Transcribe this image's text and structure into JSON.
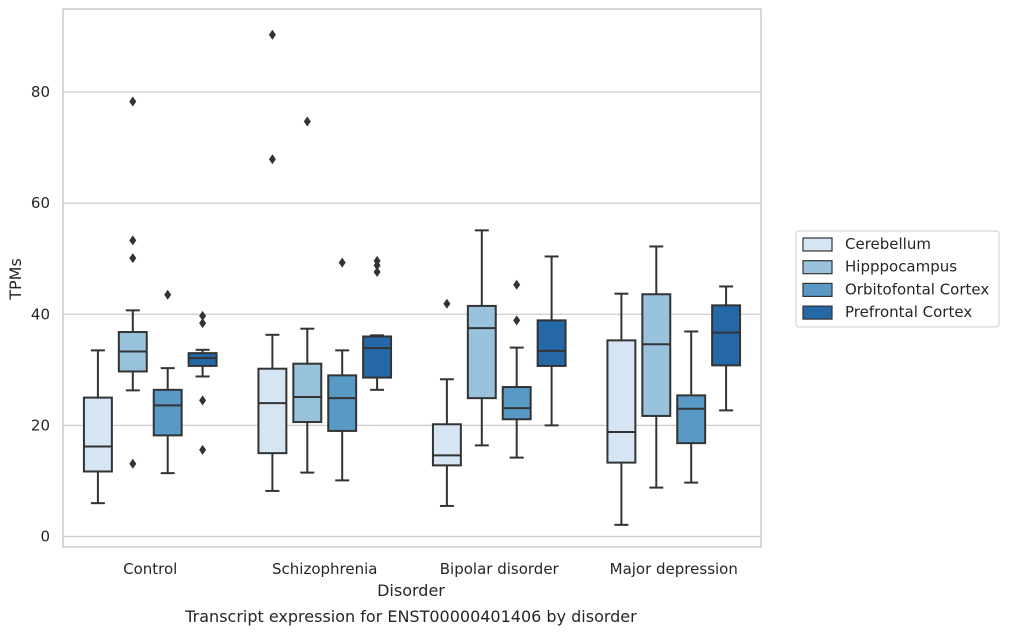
{
  "chart_data": {
    "type": "box",
    "title": "",
    "caption": "Transcript expression for ENST00000401406 by disorder",
    "xlabel": "Disorder",
    "ylabel": "TPMs",
    "ylim": [
      -2,
      95
    ],
    "yticks": [
      0,
      20,
      40,
      60,
      80
    ],
    "grid": "horizontal",
    "legend_position": "right",
    "categories": [
      "Control",
      "Schizophrenia",
      "Bipolar disorder",
      "Major depression"
    ],
    "series": [
      {
        "name": "Cerebellum",
        "color": "#d6e5f3",
        "boxes": [
          {
            "whislo": 6,
            "q1": 11.7,
            "med": 16.2,
            "q3": 25,
            "whishi": 33.5,
            "fliers": []
          },
          {
            "whislo": 8.2,
            "q1": 15,
            "med": 24,
            "q3": 30.2,
            "whishi": 36.3,
            "fliers": [
              90.3,
              67.9
            ]
          },
          {
            "whislo": 5.5,
            "q1": 12.8,
            "med": 14.6,
            "q3": 20.2,
            "whishi": 28.3,
            "fliers": [
              41.9
            ]
          },
          {
            "whislo": 2.1,
            "q1": 13.3,
            "med": 18.8,
            "q3": 35.3,
            "whishi": 43.7,
            "fliers": []
          }
        ]
      },
      {
        "name": "Hipppocampus",
        "color": "#99c2dc",
        "boxes": [
          {
            "whislo": 26.3,
            "q1": 29.7,
            "med": 33.3,
            "q3": 36.8,
            "whishi": 40.7,
            "fliers": [
              78.3,
              53.3,
              50.1,
              13.1
            ]
          },
          {
            "whislo": 11.5,
            "q1": 20.6,
            "med": 25.1,
            "q3": 31.1,
            "whishi": 37.4,
            "fliers": [
              74.7
            ]
          },
          {
            "whislo": 16.4,
            "q1": 24.9,
            "med": 37.5,
            "q3": 41.5,
            "whishi": 55.1,
            "fliers": []
          },
          {
            "whislo": 8.8,
            "q1": 21.7,
            "med": 34.6,
            "q3": 43.6,
            "whishi": 52.2,
            "fliers": []
          }
        ]
      },
      {
        "name": "Orbitofontal Cortex",
        "color": "#5899c6",
        "boxes": [
          {
            "whislo": 11.4,
            "q1": 18.2,
            "med": 23.6,
            "q3": 26.4,
            "whishi": 30.3,
            "fliers": [
              43.5
            ]
          },
          {
            "whislo": 10.1,
            "q1": 19,
            "med": 24.9,
            "q3": 29,
            "whishi": 33.5,
            "fliers": [
              49.3
            ]
          },
          {
            "whislo": 14.2,
            "q1": 21.1,
            "med": 23.1,
            "q3": 26.9,
            "whishi": 34,
            "fliers": [
              45.3,
              38.9
            ]
          },
          {
            "whislo": 9.7,
            "q1": 16.8,
            "med": 23,
            "q3": 25.4,
            "whishi": 36.9,
            "fliers": []
          }
        ]
      },
      {
        "name": "Prefrontal Cortex",
        "color": "#2468a8",
        "boxes": [
          {
            "whislo": 28.8,
            "q1": 30.7,
            "med": 32.1,
            "q3": 33,
            "whishi": 33.6,
            "fliers": [
              39.7,
              38.4,
              24.5,
              15.6
            ]
          },
          {
            "whislo": 26.4,
            "q1": 28.6,
            "med": 33.9,
            "q3": 36,
            "whishi": 36.2,
            "fliers": [
              49.6,
              48.8,
              47.6
            ]
          },
          {
            "whislo": 20,
            "q1": 30.7,
            "med": 33.4,
            "q3": 38.9,
            "whishi": 50.4,
            "fliers": []
          },
          {
            "whislo": 22.7,
            "q1": 30.8,
            "med": 36.7,
            "q3": 41.6,
            "whishi": 45,
            "fliers": []
          }
        ]
      }
    ]
  }
}
